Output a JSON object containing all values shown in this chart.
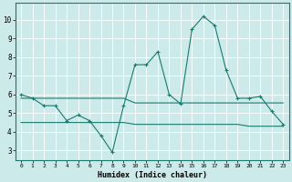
{
  "xlabel": "Humidex (Indice chaleur)",
  "x": [
    0,
    1,
    2,
    3,
    4,
    5,
    6,
    7,
    8,
    9,
    10,
    11,
    12,
    13,
    14,
    15,
    16,
    17,
    18,
    19,
    20,
    21,
    22,
    23
  ],
  "y_main": [
    6.0,
    5.8,
    5.4,
    5.4,
    4.6,
    4.9,
    4.6,
    3.8,
    2.9,
    5.4,
    7.6,
    7.6,
    8.3,
    6.0,
    5.5,
    9.5,
    10.2,
    9.7,
    7.3,
    5.8,
    5.8,
    5.9,
    5.1,
    4.4
  ],
  "y_flat1": [
    5.8,
    5.8,
    5.8,
    5.8,
    5.8,
    5.8,
    5.8,
    5.8,
    5.8,
    5.8,
    5.55,
    5.55,
    5.55,
    5.55,
    5.55,
    5.55,
    5.55,
    5.55,
    5.55,
    5.55,
    5.55,
    5.55,
    5.55,
    5.55
  ],
  "y_flat2": [
    4.5,
    4.5,
    4.5,
    4.5,
    4.5,
    4.5,
    4.5,
    4.5,
    4.5,
    4.5,
    4.4,
    4.4,
    4.4,
    4.4,
    4.4,
    4.4,
    4.4,
    4.4,
    4.4,
    4.4,
    4.3,
    4.3,
    4.3,
    4.3
  ],
  "line_color": "#1a7a6e",
  "bg_color": "#cceaea",
  "grid_color": "#ffffff",
  "ylim": [
    2.5,
    10.9
  ],
  "yticks": [
    3,
    4,
    5,
    6,
    7,
    8,
    9,
    10
  ],
  "figsize": [
    3.2,
    2.0
  ],
  "dpi": 100
}
